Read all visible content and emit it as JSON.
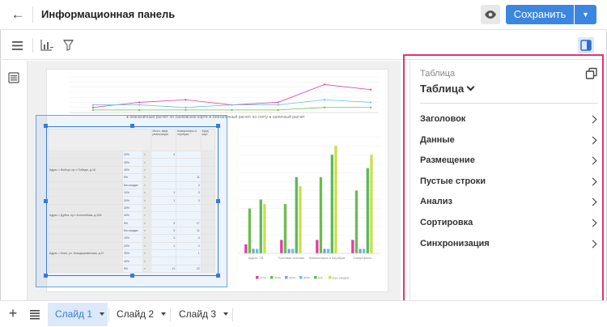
{
  "header": {
    "title": "Информационная панель",
    "save_label": "Сохранить"
  },
  "icons": {
    "back": "arrow-left-icon",
    "preview": "eye-icon",
    "save_dropdown": "caret-down-icon",
    "menu": "hamburger-menu-icon",
    "add_chart": "chart-add-icon",
    "filter": "filter-icon",
    "panel": "side-panel-icon",
    "rail": "list-icon",
    "copy": "copy-icon"
  },
  "colors": {
    "accent": "#3b86e0",
    "highlight": "#e8336d",
    "selection": "#3a7ad9"
  },
  "right_panel": {
    "kind_label": "Таблица",
    "type_value": "Таблица",
    "sections": [
      "Заголовок",
      "Данные",
      "Размещение",
      "Пустые строки",
      "Анализ",
      "Сортировка",
      "Синхронизация"
    ]
  },
  "slide": {
    "line_legend": "● безналичный расчет по банковской карте  ● безналичный расчет по счету  ● наличный расчет",
    "table_headers": [
      "Итого, эфф. реализации",
      "Компьютеры и ноутбуки",
      "Кред карт"
    ],
    "table_rows": [
      {
        "label": "",
        "pct": "20%",
        "v1": "4",
        "v2": ""
      },
      {
        "label": "",
        "pct": "30%",
        "v1": "",
        "v2": ""
      },
      {
        "label": "Адрес = Выборг, пр-т Победы, д.16",
        "pct": "40%",
        "v1": "",
        "v2": ""
      },
      {
        "label": "",
        "pct": "5%",
        "v1": "",
        "v2": "11"
      },
      {
        "label": "",
        "pct": "Без скидки",
        "v1": "",
        "v2": "3"
      },
      {
        "label": "",
        "pct": "10%",
        "v1": "1",
        "v2": "3"
      },
      {
        "label": "",
        "pct": "20%",
        "v1": "1",
        "v2": "3"
      },
      {
        "label": "",
        "pct": "30%",
        "v1": "",
        "v2": ""
      },
      {
        "label": "Адрес = Дубна, пр-т Боголюбова, д.24А",
        "pct": "40%",
        "v1": "",
        "v2": ""
      },
      {
        "label": "",
        "pct": "5%",
        "v1": "3",
        "v2": "17"
      },
      {
        "label": "",
        "pct": "Без скидки",
        "v1": "3",
        "v2": "11"
      },
      {
        "label": "",
        "pct": "10%",
        "v1": "1",
        "v2": "4"
      },
      {
        "label": "",
        "pct": "20%",
        "v1": "1",
        "v2": "4"
      },
      {
        "label": "Адрес = Клин, ул. Новодеревенская, д.27",
        "pct": "30%",
        "v1": "",
        "v2": "1"
      },
      {
        "label": "",
        "pct": "40%",
        "v1": "",
        "v2": ""
      },
      {
        "label": "",
        "pct": "5%",
        "v1": "11",
        "v2": "22"
      }
    ],
    "bar_legend": [
      "10%",
      "20%",
      "30%",
      "40%",
      "5%",
      "Без скидки"
    ]
  },
  "chart_data": [
    {
      "type": "line",
      "series": [
        {
          "values": [
            2,
            4,
            5,
            3,
            4,
            11,
            9
          ],
          "color": "#e03fa0"
        },
        {
          "values": [
            3,
            3,
            2,
            3,
            3,
            5,
            4
          ],
          "color": "#6bc5d8"
        },
        {
          "values": [
            1,
            1,
            1,
            1,
            1,
            2,
            2
          ],
          "color": "#67bf4b"
        }
      ],
      "ylim": [
        0,
        14
      ]
    },
    {
      "type": "bar",
      "categories": [
        "Аудио, ТВ",
        "Бытовая техника",
        "Компьютеры и ноутбуки",
        "Смартфоны"
      ],
      "series": [
        {
          "name": "10%",
          "color": "#e03fa0",
          "values": [
            2,
            3,
            3,
            3
          ]
        },
        {
          "name": "20%",
          "color": "#67bf4b",
          "values": [
            10,
            11,
            17,
            14
          ]
        },
        {
          "name": "30%",
          "color": "#8a9ad8",
          "values": [
            1,
            1,
            1,
            1
          ]
        },
        {
          "name": "40%",
          "color": "#6bc5d8",
          "values": [
            1,
            1,
            1,
            1
          ]
        },
        {
          "name": "5%",
          "color": "#5bb85b",
          "values": [
            12,
            17,
            22,
            19
          ]
        },
        {
          "name": "Без скидки",
          "color": "#c8e04a",
          "values": [
            11,
            15,
            24,
            22
          ]
        }
      ],
      "ylim": [
        0,
        26
      ]
    }
  ],
  "tabs": [
    {
      "label": "Слайд 1",
      "active": true
    },
    {
      "label": "Слайд 2",
      "active": false
    },
    {
      "label": "Слайд 3",
      "active": false
    }
  ]
}
